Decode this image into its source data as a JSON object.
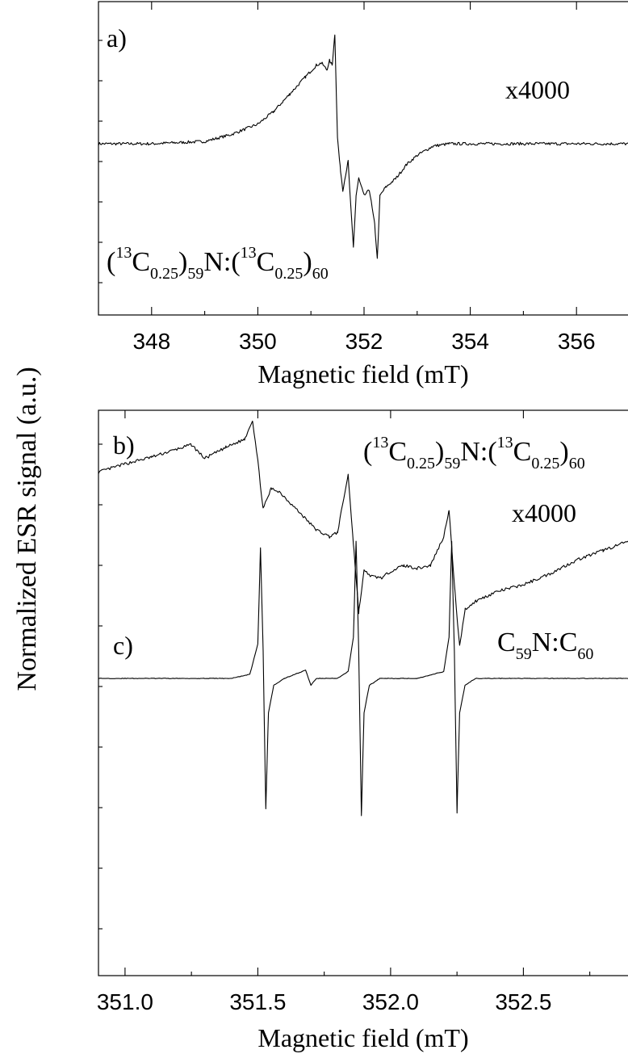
{
  "figure": {
    "ylabel": "Normalized ESR signal (a.u.)"
  },
  "chart_data": [
    {
      "type": "line",
      "panel_label": "a)",
      "xlabel": "Magnetic field (mT)",
      "ylabel": "Normalized ESR signal (a.u.)",
      "xlim": [
        347,
        357
      ],
      "x_ticks": [
        348,
        350,
        352,
        354,
        356
      ],
      "x_tick_labels": [
        "348",
        "350",
        "352",
        "354",
        "356"
      ],
      "grid": false,
      "annotations": {
        "scale": "x4000",
        "sample": {
          "p1": "(",
          "s1": "13",
          "p2": "C",
          "b1": "0.25",
          "p3": ")",
          "b2": "59",
          "p4": "N:(",
          "s2": "13",
          "p5": "C",
          "b3": "0.25",
          "p6": ")",
          "b4": "60"
        }
      },
      "series": [
        {
          "x": [
            347.0,
            348.0,
            349.0,
            349.5,
            350.0,
            350.3,
            350.6,
            350.9,
            351.1,
            351.2,
            351.3,
            351.35,
            351.4,
            351.45,
            351.5,
            351.55,
            351.6,
            351.7,
            351.75,
            351.8,
            351.85,
            351.9,
            352.0,
            352.1,
            352.2,
            352.25,
            352.3,
            352.4,
            352.6,
            352.8,
            353.0,
            353.3,
            353.6,
            354.0,
            354.5,
            355.0,
            356.0,
            357.0
          ],
          "y": [
            0.0,
            0.0,
            0.02,
            0.08,
            0.17,
            0.28,
            0.43,
            0.58,
            0.68,
            0.7,
            0.64,
            0.72,
            0.68,
            0.95,
            0.05,
            -0.2,
            -0.4,
            -0.15,
            -0.55,
            -0.9,
            -0.45,
            -0.3,
            -0.45,
            -0.4,
            -0.7,
            -1.0,
            -0.45,
            -0.38,
            -0.3,
            -0.18,
            -0.1,
            -0.02,
            0.0,
            0.0,
            0.0,
            0.0,
            0.0,
            0.0
          ]
        }
      ]
    },
    {
      "type": "line",
      "panel_label": "b)",
      "xlabel": "Magnetic field (mT)",
      "ylabel": "Normalized ESR signal (a.u.)",
      "xlim": [
        350.9,
        352.9
      ],
      "x_ticks": [
        351.0,
        351.5,
        352.0,
        352.5
      ],
      "x_tick_labels": [
        "351.0",
        "351.5",
        "352.0",
        "352.5"
      ],
      "grid": false,
      "annotations": {
        "scale": "x4000",
        "sample": {
          "p1": "(",
          "s1": "13",
          "p2": "C",
          "b1": "0.25",
          "p3": ")",
          "b2": "59",
          "p4": "N:(",
          "s2": "13",
          "p5": "C",
          "b3": "0.25",
          "p6": ")",
          "b4": "60"
        }
      },
      "series": [
        {
          "x": [
            350.9,
            351.0,
            351.1,
            351.2,
            351.25,
            351.3,
            351.38,
            351.45,
            351.48,
            351.5,
            351.52,
            351.55,
            351.58,
            351.62,
            351.67,
            351.72,
            351.77,
            351.8,
            351.84,
            351.86,
            351.88,
            351.9,
            351.93,
            351.97,
            352.0,
            352.05,
            352.1,
            352.15,
            352.2,
            352.22,
            352.24,
            352.26,
            352.28,
            352.32,
            352.4,
            352.5,
            352.6,
            352.7,
            352.8,
            352.9
          ],
          "y": [
            0.62,
            0.68,
            0.73,
            0.79,
            0.82,
            0.72,
            0.8,
            0.86,
            1.0,
            0.7,
            0.35,
            0.5,
            0.48,
            0.4,
            0.3,
            0.2,
            0.15,
            0.18,
            0.6,
            0.1,
            -0.4,
            -0.1,
            -0.14,
            -0.15,
            -0.1,
            -0.06,
            -0.08,
            -0.06,
            0.15,
            0.35,
            -0.2,
            -0.65,
            -0.38,
            -0.32,
            -0.25,
            -0.2,
            -0.12,
            -0.02,
            0.05,
            0.12
          ]
        }
      ]
    },
    {
      "type": "line",
      "panel_label": "c)",
      "xlabel": "Magnetic field (mT)",
      "ylabel": "Normalized ESR signal (a.u.)",
      "xlim": [
        350.9,
        352.9
      ],
      "x_ticks": [
        351.0,
        351.5,
        352.0,
        352.5
      ],
      "x_tick_labels": [
        "351.0",
        "351.5",
        "352.0",
        "352.5"
      ],
      "grid": false,
      "annotations": {
        "sample": {
          "p1": "C",
          "b1": "59",
          "p2": "N:C",
          "b2": "60"
        }
      },
      "series": [
        {
          "x": [
            350.9,
            351.4,
            351.47,
            351.5,
            351.51,
            351.52,
            351.53,
            351.54,
            351.56,
            351.6,
            351.68,
            351.7,
            351.72,
            351.8,
            351.84,
            351.86,
            351.87,
            351.88,
            351.89,
            351.9,
            351.92,
            351.96,
            352.1,
            352.2,
            352.22,
            352.23,
            352.24,
            352.25,
            352.26,
            352.28,
            352.32,
            352.9
          ],
          "y": [
            0.0,
            0.0,
            0.03,
            0.25,
            0.95,
            0.2,
            -0.95,
            -0.25,
            -0.05,
            0.0,
            0.06,
            -0.05,
            0.0,
            0.0,
            0.05,
            0.3,
            1.0,
            0.2,
            -1.0,
            -0.25,
            -0.05,
            0.0,
            0.0,
            0.05,
            0.3,
            1.0,
            0.2,
            -0.98,
            -0.25,
            -0.05,
            0.0,
            0.0
          ]
        }
      ]
    }
  ]
}
